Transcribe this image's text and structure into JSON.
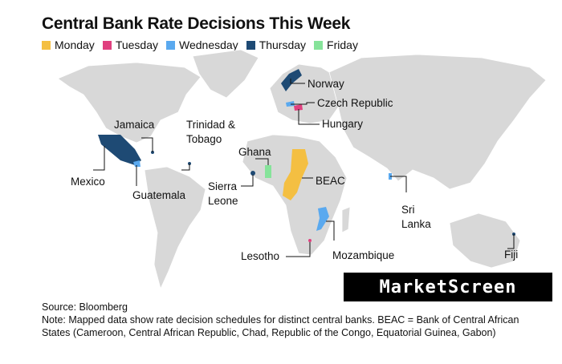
{
  "title": "Central Bank Rate Decisions This Week",
  "legend": [
    {
      "label": "Monday",
      "color": "#f4bf42"
    },
    {
      "label": "Tuesday",
      "color": "#e0407f"
    },
    {
      "label": "Wednesday",
      "color": "#5aa9ef"
    },
    {
      "label": "Thursday",
      "color": "#1e4a74"
    },
    {
      "label": "Friday",
      "color": "#86e39a"
    }
  ],
  "countries": [
    {
      "label": "Norway",
      "color": "#1e4a74"
    },
    {
      "label": "Czech Republic",
      "color": "#5aa9ef"
    },
    {
      "label": "Hungary",
      "color": "#e0407f"
    },
    {
      "label": "Jamaica",
      "color": "#1e4a74"
    },
    {
      "label": "Trinidad & Tobago",
      "color": "#1e4a74"
    },
    {
      "label": "Mexico",
      "color": "#1e4a74"
    },
    {
      "label": "Guatemala",
      "color": "#5aa9ef"
    },
    {
      "label": "Ghana",
      "color": "#86e39a"
    },
    {
      "label": "Sierra Leone",
      "color": "#1e4a74"
    },
    {
      "label": "BEAC",
      "color": "#f4bf42"
    },
    {
      "label": "Sri Lanka",
      "color": "#5aa9ef"
    },
    {
      "label": "Lesotho",
      "color": "#e0407f"
    },
    {
      "label": "Mozambique",
      "color": "#5aa9ef"
    },
    {
      "label": "Fiji",
      "color": "#1e4a74"
    }
  ],
  "brand": "MarketScreen",
  "source": "Source: Bloomberg",
  "note": "Note: Mapped data show rate decision schedules for distinct central banks. BEAC = Bank of Central African States (Cameroon, Central African Republic, Chad, Republic of the Congo, Equatorial Guinea, Gabon)"
}
